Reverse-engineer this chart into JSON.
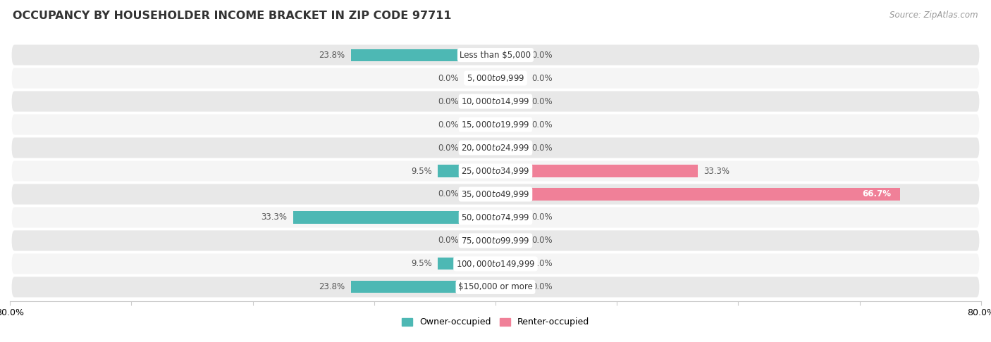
{
  "title": "OCCUPANCY BY HOUSEHOLDER INCOME BRACKET IN ZIP CODE 97711",
  "source": "Source: ZipAtlas.com",
  "categories": [
    "Less than $5,000",
    "$5,000 to $9,999",
    "$10,000 to $14,999",
    "$15,000 to $19,999",
    "$20,000 to $24,999",
    "$25,000 to $34,999",
    "$35,000 to $49,999",
    "$50,000 to $74,999",
    "$75,000 to $99,999",
    "$100,000 to $149,999",
    "$150,000 or more"
  ],
  "owner_pct": [
    23.8,
    0.0,
    0.0,
    0.0,
    0.0,
    9.5,
    0.0,
    33.3,
    0.0,
    9.5,
    23.8
  ],
  "renter_pct": [
    0.0,
    0.0,
    0.0,
    0.0,
    0.0,
    33.3,
    66.7,
    0.0,
    0.0,
    0.0,
    0.0
  ],
  "owner_color": "#4db8b4",
  "owner_color_light": "#a8d8d6",
  "renter_color": "#f08098",
  "renter_color_light": "#f5bec8",
  "bar_height": 0.52,
  "stub_size": 5.0,
  "xlim": 80.0,
  "bg_row_even": "#e8e8e8",
  "bg_row_odd": "#f5f5f5",
  "title_fontsize": 11.5,
  "cat_fontsize": 8.5,
  "pct_fontsize": 8.5,
  "tick_fontsize": 9,
  "source_fontsize": 8.5,
  "legend_fontsize": 9
}
